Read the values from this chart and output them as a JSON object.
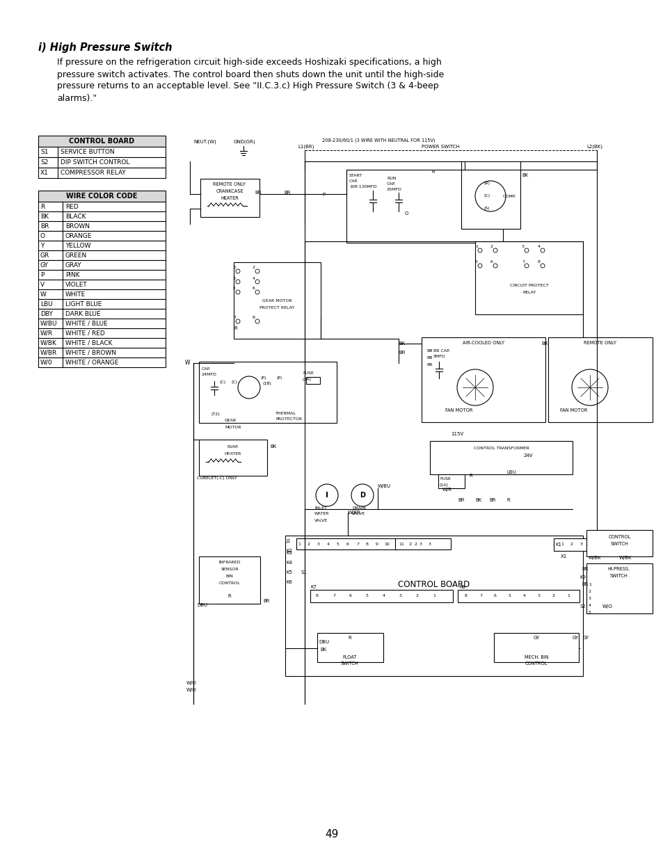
{
  "page_background": "#ffffff",
  "page_number": "49",
  "title_text": "i) High Pressure Switch",
  "body_lines": [
    "If pressure on the refrigeration circuit high-side exceeds Hoshizaki specifications, a high",
    "pressure switch activates. The control board then shuts down the unit until the high-side",
    "pressure returns to an acceptable level. See \"II.C.3.c) High Pressure Switch (3 & 4-beep",
    "alarms).\""
  ],
  "control_board_title": "CONTROL BOARD",
  "control_board_rows": [
    [
      "S1",
      "SERVICE BUTTON"
    ],
    [
      "S2",
      "DIP SWITCH CONTROL"
    ],
    [
      "X1",
      "COMPRESSOR RELAY"
    ]
  ],
  "wire_color_title": "WIRE COLOR CODE",
  "wire_color_rows": [
    [
      "R",
      "RED"
    ],
    [
      "BK",
      "BLACK"
    ],
    [
      "BR",
      "BROWN"
    ],
    [
      "O",
      "ORANGE"
    ],
    [
      "Y",
      "YELLOW"
    ],
    [
      "GR",
      "GREEN"
    ],
    [
      "GY",
      "GRAY"
    ],
    [
      "P",
      "PINK"
    ],
    [
      "V",
      "VIOLET"
    ],
    [
      "W",
      "WHITE"
    ],
    [
      "LBU",
      "LIGHT BLUE"
    ],
    [
      "DBY",
      "DARK BLUE"
    ],
    [
      "W/BU",
      "WHITE / BLUE"
    ],
    [
      "W/R",
      "WHITE / RED"
    ],
    [
      "W/BK",
      "WHITE / BLACK"
    ],
    [
      "W/BR",
      "WHITE / BROWN"
    ],
    [
      "W/0",
      "WHITE / ORANGE"
    ]
  ]
}
